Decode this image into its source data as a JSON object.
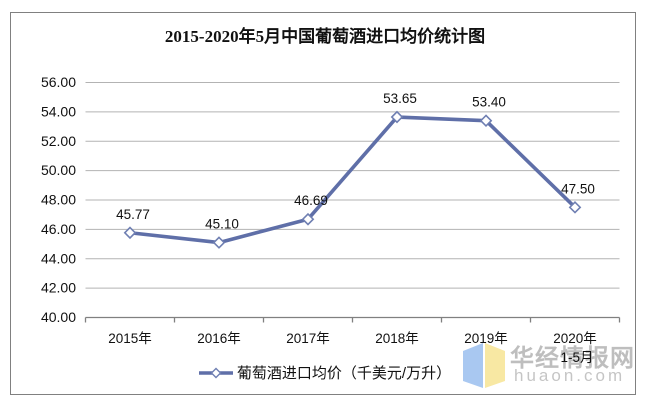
{
  "title": "2015-2020年5月中国葡萄酒进口均价统计图",
  "legend": {
    "label": "葡萄酒进口均价（千美元/万升）"
  },
  "watermark": {
    "site_name": "华经情报网",
    "site_url": "huaon.com"
  },
  "colors": {
    "line": "#5f6fa8",
    "marker_fill": "#ffffff",
    "marker_stroke": "#6f7fb2",
    "grid": "#b3b3b3",
    "axis": "#808080",
    "text": "#111111",
    "logo_blue": "#a9c8f1",
    "logo_yellow": "#f8e8a3"
  },
  "chart_data": {
    "type": "line",
    "title": "2015-2020年5月中国葡萄酒进口均价统计图",
    "categories": [
      "2015年",
      "2016年",
      "2017年",
      "2018年",
      "2019年",
      "2020年"
    ],
    "x_sublabels": [
      "",
      "",
      "",
      "",
      "",
      "1-5月"
    ],
    "series": [
      {
        "name": "葡萄酒进口均价（千美元/万升）",
        "values": [
          45.77,
          45.1,
          46.69,
          53.65,
          53.4,
          47.5
        ]
      }
    ],
    "value_label_decimals": 2,
    "xlabel": "",
    "ylabel": "",
    "ylim": [
      40,
      56
    ],
    "ystep": 2,
    "ytick_decimals": 2,
    "grid": true,
    "legend_position": "bottom"
  }
}
